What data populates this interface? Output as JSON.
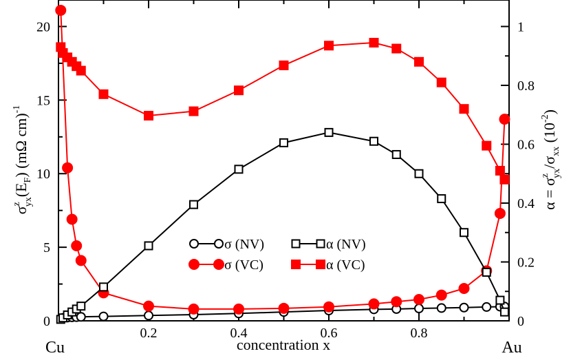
{
  "chart_data": {
    "type": "line",
    "xlabel": "concentration x",
    "x_end_labels": {
      "left": "Cu",
      "right": "Au"
    },
    "left_axis": {
      "label": "σ_yx^z(E_F)  (mΩ cm)^-1",
      "ylim": [
        0,
        21.8
      ],
      "ticks": [
        0,
        5,
        10,
        15,
        20
      ]
    },
    "right_axis": {
      "label": "α = σ_yx^z/σ_xx  (10^-2)",
      "ylim": [
        0,
        1.09
      ],
      "ticks": [
        0,
        0.2,
        0.4,
        0.6,
        0.8,
        1
      ]
    },
    "xlim": [
      0,
      1
    ],
    "xticks": [
      0.2,
      0.4,
      0.6,
      0.8
    ],
    "xtick_labels": [
      "0.2",
      "0.4",
      "0.6",
      "0.8"
    ],
    "left_ticks_labels": [
      "0",
      "5",
      "10",
      "15",
      "20"
    ],
    "right_ticks_labels": [
      "0",
      "0.2",
      "0.4",
      "0.6",
      "0.8",
      "1"
    ],
    "series": [
      {
        "name": "σ (NV)",
        "axis": "left",
        "color": "#000000",
        "marker": "circle-open",
        "x": [
          0.01,
          0.02,
          0.03,
          0.04,
          0.05,
          0.1,
          0.2,
          0.3,
          0.4,
          0.5,
          0.6,
          0.7,
          0.75,
          0.8,
          0.85,
          0.9,
          0.95,
          0.98,
          0.99
        ],
        "values": [
          0.2,
          0.22,
          0.24,
          0.25,
          0.27,
          0.3,
          0.36,
          0.42,
          0.5,
          0.6,
          0.7,
          0.78,
          0.8,
          0.84,
          0.87,
          0.9,
          0.94,
          0.96,
          0.97
        ]
      },
      {
        "name": "σ (VC)",
        "axis": "left",
        "color": "#ff0000",
        "marker": "circle-filled",
        "x": [
          0.005,
          0.02,
          0.03,
          0.04,
          0.05,
          0.1,
          0.2,
          0.3,
          0.4,
          0.5,
          0.6,
          0.7,
          0.75,
          0.8,
          0.85,
          0.9,
          0.95,
          0.98,
          0.99
        ],
        "values": [
          21.1,
          10.4,
          6.9,
          5.1,
          4.1,
          1.9,
          1.0,
          0.8,
          0.8,
          0.85,
          0.95,
          1.15,
          1.3,
          1.45,
          1.75,
          2.2,
          3.4,
          7.3,
          13.7
        ]
      },
      {
        "name": "α (NV)",
        "axis": "right",
        "color": "#000000",
        "marker": "square-open",
        "x": [
          0.005,
          0.01,
          0.02,
          0.03,
          0.04,
          0.05,
          0.1,
          0.2,
          0.3,
          0.4,
          0.5,
          0.6,
          0.7,
          0.75,
          0.8,
          0.85,
          0.9,
          0.95,
          0.98,
          0.99
        ],
        "values": [
          0.005,
          0.01,
          0.02,
          0.03,
          0.04,
          0.05,
          0.115,
          0.255,
          0.395,
          0.515,
          0.605,
          0.64,
          0.61,
          0.565,
          0.5,
          0.415,
          0.3,
          0.165,
          0.07,
          0.03
        ]
      },
      {
        "name": "α (VC)",
        "axis": "right",
        "color": "#ff0000",
        "marker": "square-filled",
        "x": [
          0.005,
          0.01,
          0.02,
          0.03,
          0.04,
          0.05,
          0.1,
          0.2,
          0.3,
          0.4,
          0.5,
          0.6,
          0.7,
          0.75,
          0.8,
          0.85,
          0.9,
          0.95,
          0.98,
          0.99
        ],
        "values": [
          0.93,
          0.91,
          0.895,
          0.88,
          0.865,
          0.85,
          0.77,
          0.697,
          0.712,
          0.783,
          0.868,
          0.935,
          0.945,
          0.925,
          0.88,
          0.81,
          0.72,
          0.595,
          0.51,
          0.48
        ]
      }
    ],
    "legend": {
      "placement": "center-bottom"
    }
  }
}
